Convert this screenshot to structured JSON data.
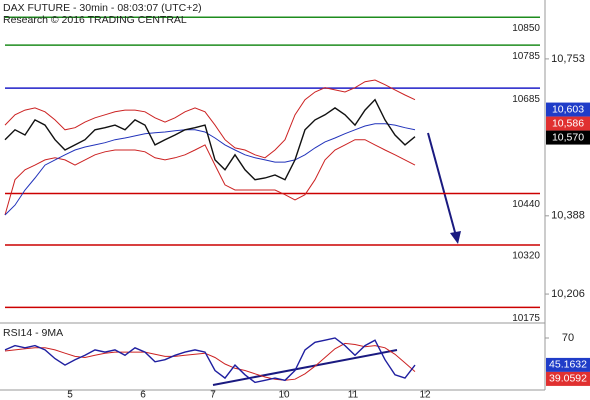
{
  "chart_data": [
    {
      "type": "line",
      "title": "DAX FUTURE - 30min - 08:03:07 (UTC+2)",
      "subtitle": "Research © 2016 TRADING CENTRAL",
      "x": [
        0,
        1,
        2,
        3,
        4,
        5,
        6,
        7,
        8,
        9,
        10,
        11,
        12,
        13,
        14,
        15,
        16,
        17,
        18,
        19,
        20,
        21,
        22,
        23,
        24,
        25,
        26,
        27,
        28,
        29,
        30,
        31,
        32,
        33,
        34,
        35,
        36,
        37,
        38,
        39,
        40,
        41
      ],
      "xlim": [
        -0.5,
        54
      ],
      "ylim": [
        10141,
        10890
      ],
      "yticks": [
        {
          "value": 10753,
          "label": "10,753"
        },
        {
          "value": 10388,
          "label": "10,388"
        },
        {
          "value": 10206,
          "label": "10,206"
        }
      ],
      "series": [
        {
          "color": "#cc2222",
          "values": [
            10599,
            10623,
            10634,
            10639,
            10630,
            10611,
            10588,
            10593,
            10606,
            10616,
            10623,
            10630,
            10634,
            10634,
            10630,
            10616,
            10606,
            10616,
            10630,
            10639,
            10630,
            10599,
            10565,
            10546,
            10541,
            10530,
            10523,
            10541,
            10565,
            10623,
            10658,
            10676,
            10686,
            10681,
            10676,
            10686,
            10700,
            10704,
            10693,
            10681,
            10669,
            10658
          ]
        },
        {
          "color": "#cc2222",
          "values": [
            10390,
            10472,
            10495,
            10506,
            10518,
            10523,
            10518,
            10506,
            10518,
            10530,
            10537,
            10541,
            10541,
            10541,
            10537,
            10523,
            10518,
            10523,
            10530,
            10541,
            10553,
            10506,
            10460,
            10448,
            10448,
            10448,
            10448,
            10448,
            10437,
            10425,
            10437,
            10472,
            10518,
            10541,
            10553,
            10565,
            10565,
            10553,
            10541,
            10530,
            10518,
            10506
          ]
        },
        {
          "color": "#2233bb",
          "values": [
            10390,
            10413,
            10448,
            10476,
            10506,
            10518,
            10530,
            10541,
            10548,
            10553,
            10558,
            10565,
            10569,
            10574,
            10579,
            10581,
            10583,
            10586,
            10588,
            10588,
            10583,
            10569,
            10553,
            10541,
            10530,
            10523,
            10518,
            10513,
            10513,
            10518,
            10530,
            10546,
            10560,
            10569,
            10579,
            10588,
            10597,
            10602,
            10602,
            10599,
            10593,
            10588
          ]
        },
        {
          "color": "#111111",
          "values": [
            10565,
            10588,
            10576,
            10611,
            10599,
            10565,
            10541,
            10553,
            10565,
            10588,
            10593,
            10599,
            10588,
            10611,
            10599,
            10553,
            10565,
            10576,
            10588,
            10593,
            10599,
            10518,
            10495,
            10530,
            10495,
            10472,
            10476,
            10483,
            10472,
            10518,
            10588,
            10611,
            10623,
            10639,
            10623,
            10599,
            10634,
            10658,
            10611,
            10576,
            10553,
            10572
          ]
        }
      ],
      "levels": [
        {
          "value": 10850,
          "color": "#1e8c1e"
        },
        {
          "value": 10785,
          "color": "#1e8c1e"
        },
        {
          "value": 10685,
          "color": "#1f1fc8"
        },
        {
          "value": 10440,
          "color": "#cc0000"
        },
        {
          "value": 10320,
          "color": "#cc0000"
        },
        {
          "value": 10175,
          "color": "#cc0000"
        }
      ],
      "markers": [
        {
          "value": 10603,
          "label": "10,603",
          "color": "#1f3cc8"
        },
        {
          "value": 10586,
          "label": "10,586",
          "color": "#e03030"
        },
        {
          "value": 10570,
          "label": "10,570",
          "color": "#000000"
        }
      ]
    },
    {
      "type": "line",
      "title": "RSI14 - 9MA",
      "x": [
        0,
        1,
        2,
        3,
        4,
        5,
        6,
        7,
        8,
        9,
        10,
        11,
        12,
        13,
        14,
        15,
        16,
        17,
        18,
        19,
        20,
        21,
        22,
        23,
        24,
        25,
        26,
        27,
        28,
        29,
        30,
        31,
        32,
        33,
        34,
        35,
        36,
        37,
        38,
        39,
        40,
        41
      ],
      "xlim": [
        -0.5,
        54
      ],
      "xticks": [
        {
          "value": 6.5,
          "label": "5"
        },
        {
          "value": 13.8,
          "label": "6"
        },
        {
          "value": 20.8,
          "label": "7"
        },
        {
          "value": 27.9,
          "label": "10"
        },
        {
          "value": 34.8,
          "label": "11"
        },
        {
          "value": 42,
          "label": "12"
        }
      ],
      "ylim": [
        22,
        82
      ],
      "yticks": [
        70
      ],
      "series": [
        {
          "color": "#cc2222",
          "values": [
            58,
            59,
            60,
            61,
            61,
            59,
            56,
            53,
            52,
            54,
            56,
            57,
            57,
            57,
            57,
            55,
            53,
            53,
            54,
            55,
            56,
            52,
            46,
            42,
            40,
            37,
            34,
            32,
            31,
            32,
            37,
            44,
            52,
            60,
            65,
            64,
            62,
            63,
            61,
            55,
            47,
            39
          ]
        },
        {
          "color": "#1f1fa0",
          "values": [
            59,
            63,
            61,
            63,
            59,
            51,
            45,
            50,
            54,
            59,
            57,
            59,
            54,
            61,
            57,
            48,
            50,
            54,
            57,
            59,
            57,
            40,
            33,
            45,
            36,
            29,
            31,
            33,
            31,
            40,
            59,
            66,
            68,
            70,
            63,
            54,
            63,
            68,
            50,
            36,
            33,
            45
          ]
        }
      ],
      "markers": [
        {
          "value": 45.1632,
          "color": "#1f3cc8"
        },
        {
          "value": 39.0592,
          "color": "#e03030"
        }
      ]
    }
  ]
}
